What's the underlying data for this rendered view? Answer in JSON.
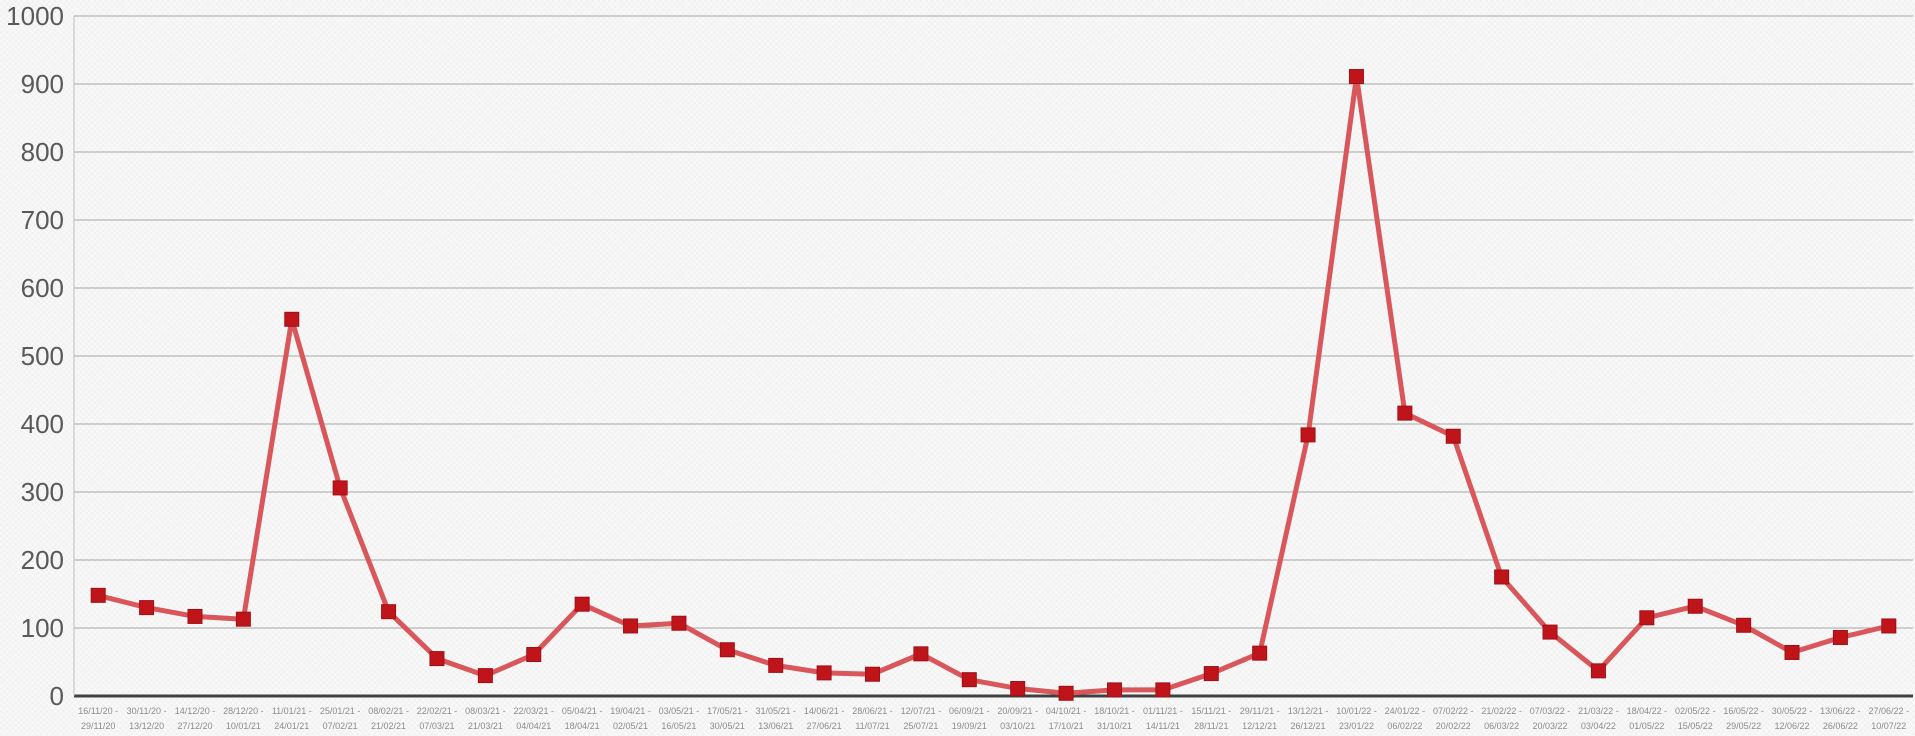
{
  "chart_data": {
    "type": "line",
    "title": "",
    "xlabel": "",
    "ylabel": "",
    "ylim": [
      0,
      1000
    ],
    "yticks": [
      0,
      100,
      200,
      300,
      400,
      500,
      600,
      700,
      800,
      900,
      1000
    ],
    "grid": true,
    "legend": "none",
    "colors": {
      "line": "#d9565a",
      "marker": "#c0141b",
      "grid": "#a6a6a6",
      "axis": "#404040"
    },
    "categories": [
      [
        "16/11/20 -",
        "29/11/20"
      ],
      [
        "30/11/20 -",
        "13/12/20"
      ],
      [
        "14/12/20 -",
        "27/12/20"
      ],
      [
        "28/12/20 -",
        "10/01/21"
      ],
      [
        "11/01/21 -",
        "24/01/21"
      ],
      [
        "25/01/21 -",
        "07/02/21"
      ],
      [
        "08/02/21 -",
        "21/02/21"
      ],
      [
        "22/02/21 -",
        "07/03/21"
      ],
      [
        "08/03/21 -",
        "21/03/21"
      ],
      [
        "22/03/21 -",
        "04/04/21"
      ],
      [
        "05/04/21 -",
        "18/04/21"
      ],
      [
        "19/04/21 -",
        "02/05/21"
      ],
      [
        "03/05/21 -",
        "16/05/21"
      ],
      [
        "17/05/21 -",
        "30/05/21"
      ],
      [
        "31/05/21 -",
        "13/06/21"
      ],
      [
        "14/06/21 -",
        "27/06/21"
      ],
      [
        "28/06/21 -",
        "11/07/21"
      ],
      [
        "12/07/21 -",
        "25/07/21"
      ],
      [
        "06/09/21 -",
        "19/09/21"
      ],
      [
        "20/09/21 -",
        "03/10/21"
      ],
      [
        "04/10/21 -",
        "17/10/21"
      ],
      [
        "18/10/21 -",
        "31/10/21"
      ],
      [
        "01/11/21 -",
        "14/11/21"
      ],
      [
        "15/11/21 -",
        "28/11/21"
      ],
      [
        "29/11/21 -",
        "12/12/21"
      ],
      [
        "13/12/21 -",
        "26/12/21"
      ],
      [
        "10/01/22 -",
        "23/01/22"
      ],
      [
        "24/01/22 -",
        "06/02/22"
      ],
      [
        "07/02/22 -",
        "20/02/22"
      ],
      [
        "21/02/22 -",
        "06/03/22"
      ],
      [
        "07/03/22 -",
        "20/03/22"
      ],
      [
        "21/03/22 -",
        "03/04/22"
      ],
      [
        "18/04/22 -",
        "01/05/22"
      ],
      [
        "02/05/22 -",
        "15/05/22"
      ],
      [
        "16/05/22 -",
        "29/05/22"
      ],
      [
        "30/05/22 -",
        "12/06/22"
      ],
      [
        "13/06/22 -",
        "26/06/22"
      ],
      [
        "27/06/22 -",
        "10/07/22"
      ]
    ],
    "series": [
      {
        "values": [
          148,
          130,
          117,
          113,
          554,
          306,
          124,
          55,
          30,
          61,
          135,
          103,
          107,
          68,
          45,
          34,
          32,
          62,
          24,
          11,
          4,
          9,
          9,
          33,
          63,
          384,
          911,
          416,
          382,
          175,
          94,
          37,
          115,
          132,
          104,
          64,
          86,
          103
        ]
      }
    ]
  }
}
